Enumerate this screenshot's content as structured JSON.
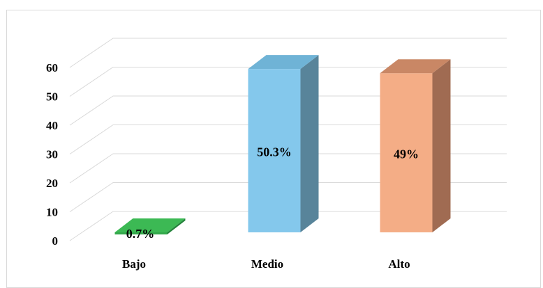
{
  "chart_data": {
    "type": "bar",
    "style": "3d-column",
    "categories": [
      "Bajo",
      "Medio",
      "Alto"
    ],
    "values": [
      0.7,
      50.3,
      49
    ],
    "data_labels": [
      "0.7%",
      "50.3%",
      "49%"
    ],
    "ylim": [
      0,
      60
    ],
    "yticks": [
      0,
      10,
      20,
      30,
      40,
      50,
      60
    ],
    "grid": true,
    "legend": "none",
    "title": "",
    "xlabel": "",
    "ylabel": "",
    "colors": {
      "Bajo": {
        "front": "#33a84b",
        "top": "#3cb954",
        "side": "#23833a"
      },
      "Medio": {
        "front": "#84c8ec",
        "top": "#6fb3d6",
        "side": "#58849a"
      },
      "Alto": {
        "front": "#f4ad86",
        "top": "#c98765",
        "side": "#a06b52"
      }
    },
    "gridline_color": "#d9d9d9"
  }
}
